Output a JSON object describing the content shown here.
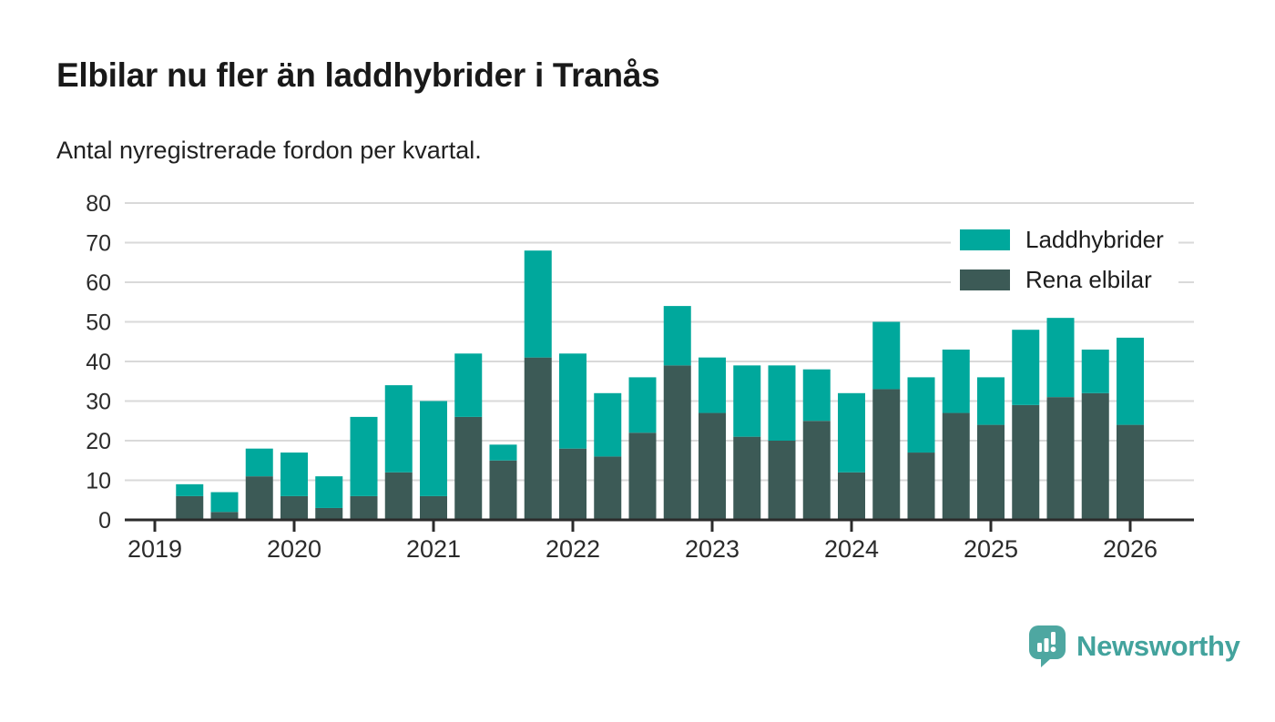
{
  "header": {
    "title": "Elbilar nu fler än laddhybrider i Tranås",
    "subtitle": "Antal nyregistrerade fordon per kvartal."
  },
  "colors": {
    "laddhybrider": "#00a89c",
    "rena_elbilar": "#3c5a56",
    "gridline": "#d9d9d9",
    "axis": "#2b2b2b",
    "tick_text": "#2b2b2b",
    "brand_teal": "#4ea7a1"
  },
  "chart_data": {
    "type": "bar",
    "stacked": true,
    "title": "Elbilar nu fler än laddhybrider i Tranås",
    "subtitle": "Antal nyregistrerade fordon per kvartal.",
    "xlabel": "",
    "ylabel": "",
    "ylim": [
      0,
      80
    ],
    "yticks": [
      0,
      10,
      20,
      30,
      40,
      50,
      60,
      70,
      80
    ],
    "grid": true,
    "legend_position": "top-right",
    "x_year_ticks": [
      "2019",
      "2020",
      "2021",
      "2022",
      "2023",
      "2024",
      "2025",
      "2026"
    ],
    "first_quarter": "2019 Q2",
    "categories": [
      "2019 Q2",
      "2019 Q3",
      "2019 Q4",
      "2020 Q1",
      "2020 Q2",
      "2020 Q3",
      "2020 Q4",
      "2021 Q1",
      "2021 Q2",
      "2021 Q3",
      "2021 Q4",
      "2022 Q1",
      "2022 Q2",
      "2022 Q3",
      "2022 Q4",
      "2023 Q1",
      "2023 Q2",
      "2023 Q3",
      "2023 Q4",
      "2024 Q1",
      "2024 Q2",
      "2024 Q3",
      "2024 Q4",
      "2025 Q1",
      "2025 Q2",
      "2025 Q3",
      "2025 Q4",
      "2026 Q1"
    ],
    "series": [
      {
        "name": "Laddhybrider",
        "color": "#00a89c",
        "values": [
          3,
          5,
          7,
          11,
          8,
          20,
          22,
          24,
          16,
          4,
          27,
          24,
          16,
          14,
          15,
          14,
          18,
          19,
          13,
          20,
          17,
          19,
          16,
          12,
          19,
          20,
          11,
          22
        ]
      },
      {
        "name": "Rena elbilar",
        "color": "#3c5a56",
        "values": [
          6,
          2,
          11,
          6,
          3,
          6,
          12,
          6,
          26,
          15,
          41,
          18,
          16,
          22,
          39,
          27,
          21,
          20,
          25,
          12,
          33,
          17,
          27,
          24,
          29,
          31,
          32,
          24
        ]
      }
    ],
    "totals": [
      9,
      7,
      18,
      17,
      11,
      26,
      34,
      30,
      42,
      19,
      68,
      42,
      32,
      36,
      54,
      41,
      39,
      39,
      38,
      32,
      50,
      36,
      43,
      36,
      48,
      51,
      43,
      46
    ]
  },
  "legend": {
    "items": [
      {
        "label": "Laddhybrider",
        "color": "#00a89c"
      },
      {
        "label": "Rena elbilar",
        "color": "#3c5a56"
      }
    ]
  },
  "footer": {
    "brand": "Newsworthy"
  }
}
